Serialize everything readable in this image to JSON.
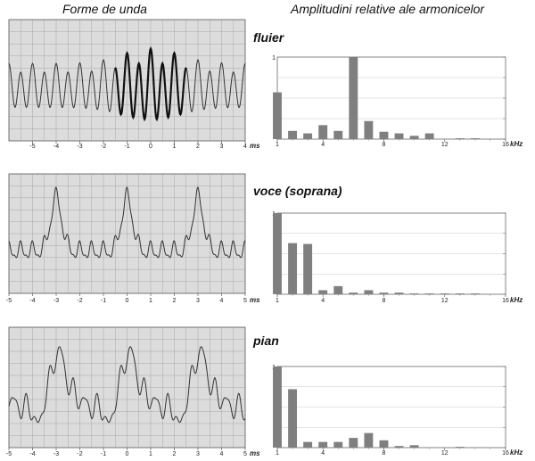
{
  "headings": {
    "waveform": "Forme de unda",
    "amplitude": "Amplitudini relative ale armonicelor"
  },
  "colors": {
    "plot_background": "#dcdcdc",
    "grid": "#9a9a9a",
    "wave": "#333333",
    "bar": "#7f7f7f"
  },
  "wave_axis": {
    "unit": "ms",
    "ticks": [
      "-5",
      "-4",
      "-3",
      "-2",
      "-1",
      "0",
      "1",
      "2",
      "3",
      "4",
      "5"
    ]
  },
  "spectrum_axis": {
    "unit": "kHz",
    "ticks": [
      "1",
      "4",
      "8",
      "12",
      "16"
    ],
    "ymax_label": "1"
  },
  "chart_data": [
    {
      "type": "line",
      "instrument": "fluier",
      "xlim": [
        -6,
        4
      ],
      "tick_labels": [
        "-5",
        "-4",
        "-3",
        "-2",
        "-1",
        "0",
        "1",
        "2",
        "3",
        "4"
      ],
      "emphasis_range": [
        -1.5,
        1.5
      ],
      "xlabel": "ms",
      "grid": true
    },
    {
      "type": "bar",
      "instrument": "fluier",
      "x": [
        1,
        2,
        3,
        4,
        5,
        6,
        7,
        8,
        9,
        10,
        11,
        12,
        13,
        14,
        15
      ],
      "values": [
        0.57,
        0.1,
        0.07,
        0.17,
        0.1,
        1.0,
        0.22,
        0.09,
        0.07,
        0.04,
        0.07,
        0.0,
        0.01,
        0.01,
        0.0
      ],
      "xlim": [
        1,
        16
      ],
      "ylim": [
        0,
        1
      ],
      "xlabel": "kHz",
      "grid": true
    },
    {
      "type": "line",
      "instrument": "voce (soprana)",
      "xlim": [
        -5,
        5
      ],
      "tick_labels": [
        "-5",
        "-4",
        "-3",
        "-2",
        "-1",
        "0",
        "1",
        "2",
        "3",
        "4",
        "5"
      ],
      "xlabel": "ms",
      "grid": true
    },
    {
      "type": "bar",
      "instrument": "voce (soprana)",
      "x": [
        1,
        2,
        3,
        4,
        5,
        6,
        7,
        8,
        9,
        10,
        11,
        12,
        13,
        14,
        15
      ],
      "values": [
        1.0,
        0.63,
        0.62,
        0.05,
        0.1,
        0.02,
        0.05,
        0.02,
        0.02,
        0.01,
        0.01,
        0.01,
        0.01,
        0.01,
        0.0
      ],
      "xlim": [
        1,
        16
      ],
      "ylim": [
        0,
        1
      ],
      "xlabel": "kHz",
      "grid": true
    },
    {
      "type": "line",
      "instrument": "pian",
      "xlim": [
        -5,
        5
      ],
      "tick_labels": [
        "-5",
        "-4",
        "-3",
        "-2",
        "-1",
        "0",
        "1",
        "2",
        "3",
        "4",
        "5"
      ],
      "xlabel": "ms",
      "grid": true
    },
    {
      "type": "bar",
      "instrument": "pian",
      "x": [
        1,
        2,
        3,
        4,
        5,
        6,
        7,
        8,
        9,
        10,
        11,
        12,
        13,
        14,
        15
      ],
      "values": [
        1.0,
        0.72,
        0.07,
        0.07,
        0.07,
        0.12,
        0.18,
        0.09,
        0.02,
        0.03,
        0.0,
        0.0,
        0.01,
        0.0,
        0.0
      ],
      "xlim": [
        1,
        16
      ],
      "ylim": [
        0,
        1
      ],
      "xlabel": "kHz",
      "grid": true
    }
  ],
  "instruments": [
    "fluier",
    "voce (soprana)",
    "pian"
  ]
}
